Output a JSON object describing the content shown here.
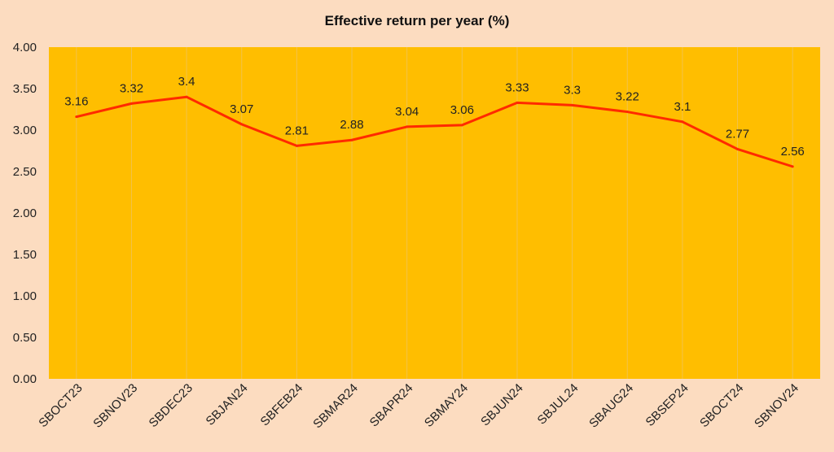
{
  "chart_data": {
    "type": "line",
    "title": "Effective  return per year (%)",
    "xlabel": "",
    "ylabel": "",
    "categories": [
      "SBOCT23",
      "SBNOV23",
      "SBDEC23",
      "SBJAN24",
      "SBFEB24",
      "SBMAR24",
      "SBAPR24",
      "SBMAY24",
      "SBJUN24",
      "SBJUL24",
      "SBAUG24",
      "SBSEP24",
      "SBOCT24",
      "SBNOV24"
    ],
    "values": [
      3.16,
      3.32,
      3.4,
      3.07,
      2.81,
      2.88,
      3.04,
      3.06,
      3.33,
      3.3,
      3.22,
      3.1,
      2.77,
      2.56
    ],
    "data_labels": [
      "3.16",
      "3.32",
      "3.4",
      "3.07",
      "2.81",
      "2.88",
      "3.04",
      "3.06",
      "3.33",
      "3.3",
      "3.22",
      "3.1",
      "2.77",
      "2.56"
    ],
    "ylim": [
      0,
      4
    ],
    "yticks": [
      "0.00",
      "0.50",
      "1.00",
      "1.50",
      "2.00",
      "2.50",
      "3.00",
      "3.50",
      "4.00"
    ],
    "grid": "vertical faint lines",
    "legend": "none",
    "colors": {
      "background": "#fcdcc0",
      "plot_area": "#ffbe00",
      "line": "#ff2a00",
      "grid": "#f2c24a"
    }
  }
}
